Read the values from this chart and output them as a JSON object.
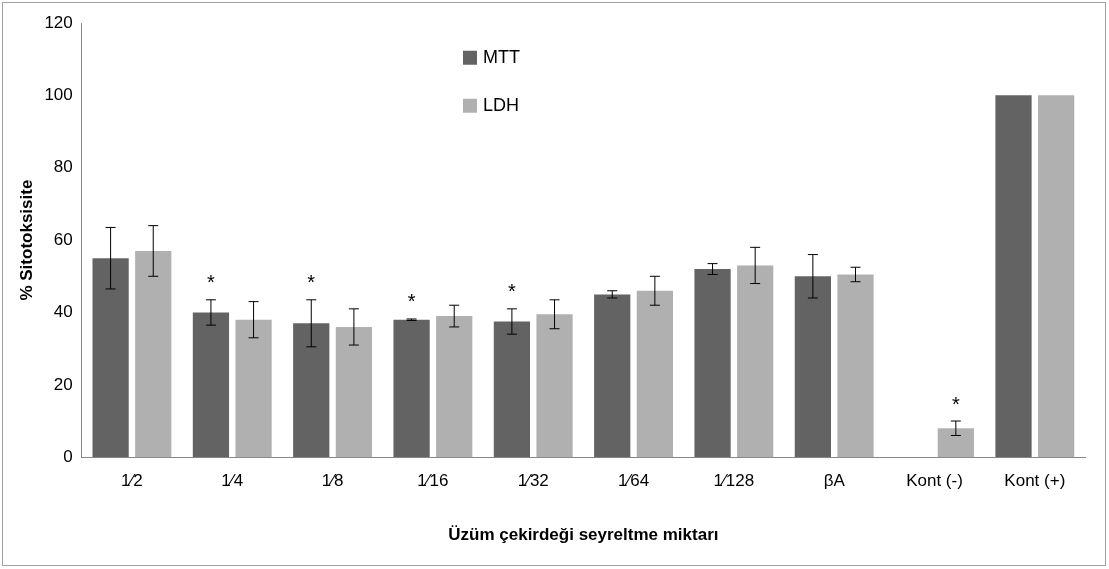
{
  "chart_data": {
    "type": "bar",
    "xlabel": "Üzüm çekirdeği seyreltme miktarı",
    "ylabel": "% Sitotoksisite",
    "categories": [
      "1⁄2",
      "1⁄4",
      "1⁄8",
      "1⁄16",
      "1⁄32",
      "1⁄64",
      "1⁄128",
      "βA",
      "Kont (-)",
      "Kont (+)"
    ],
    "series": [
      {
        "name": "MTT",
        "color": "#636363",
        "values": [
          55,
          40,
          37,
          38,
          37.5,
          45,
          52,
          50,
          0,
          100
        ],
        "errors": [
          8.5,
          3.5,
          6.5,
          0.2,
          3.5,
          1,
          1.5,
          6,
          null,
          null
        ]
      },
      {
        "name": "LDH",
        "color": "#b0b0b0",
        "values": [
          57,
          38,
          36,
          39,
          39.5,
          46,
          53,
          50.5,
          8,
          100
        ],
        "errors": [
          7,
          5,
          5,
          3,
          4,
          4,
          5,
          2,
          2,
          null
        ]
      }
    ],
    "ylim": [
      0,
      120
    ],
    "yticks": [
      0,
      20,
      40,
      60,
      80,
      100,
      120
    ],
    "grid": false,
    "legend": "top",
    "annotations": [
      {
        "text": "*",
        "x": "1⁄4",
        "y": 40
      },
      {
        "text": "*",
        "x": "1⁄8",
        "y": 37
      },
      {
        "text": "*",
        "x": "1⁄16",
        "y": 38
      },
      {
        "text": "*",
        "x": "1⁄32",
        "y": 37.5
      },
      {
        "text": "*",
        "x": "Kont (-)",
        "y": 8
      }
    ]
  }
}
